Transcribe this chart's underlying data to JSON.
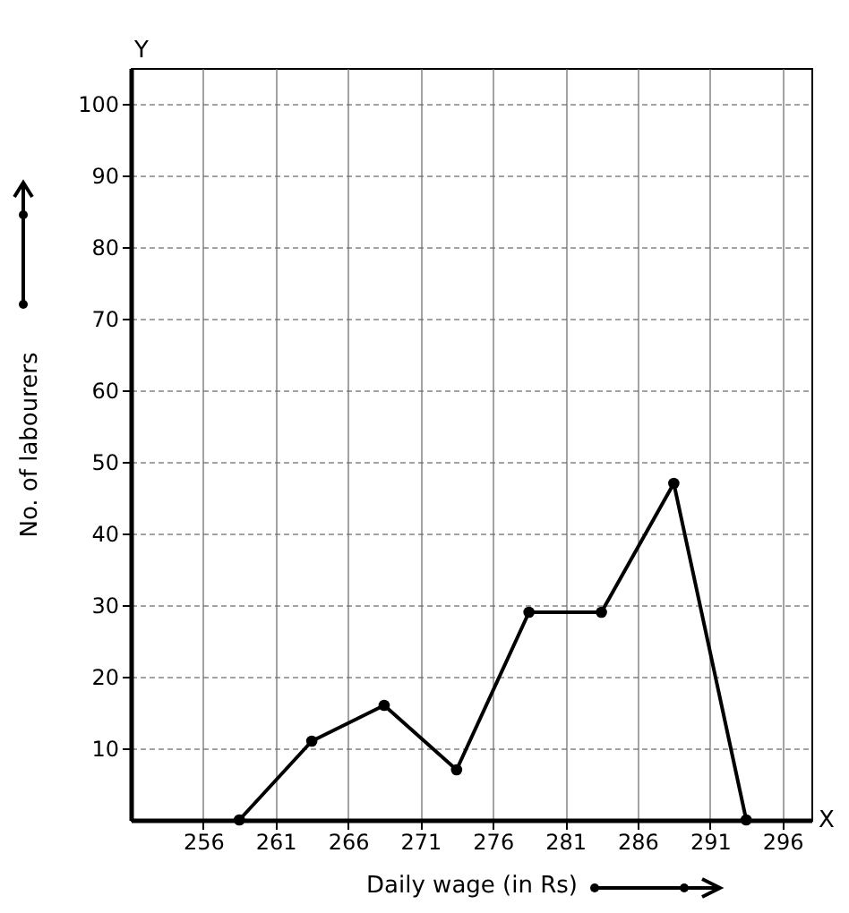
{
  "chart_data": {
    "type": "line",
    "xlabel": "Daily wage (in Rs)",
    "ylabel": "No. of labourers",
    "annotations": [
      "X",
      "Y"
    ],
    "x": [
      258.5,
      263.5,
      268.5,
      273.5,
      278.5,
      283.5,
      288.5,
      293.5
    ],
    "series": [
      {
        "color": "#000000",
        "values": [
          0,
          11,
          16,
          7,
          29,
          29,
          47,
          0
        ]
      }
    ],
    "xlim": [
      251,
      298
    ],
    "xticks": [
      256,
      261,
      266,
      271,
      276,
      281,
      286,
      291,
      296
    ],
    "ylim": [
      0,
      105
    ],
    "yticks": [
      10,
      20,
      30,
      40,
      50,
      60,
      70,
      80,
      90,
      100
    ],
    "grid": true,
    "marker": "circle",
    "line_style": "solid",
    "legend": false
  }
}
